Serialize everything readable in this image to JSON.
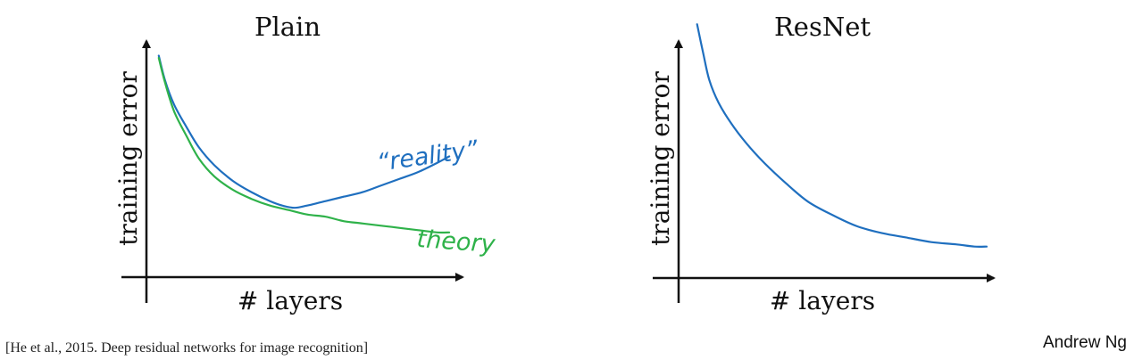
{
  "chart_data": [
    {
      "type": "line",
      "title": "Plain",
      "xlabel": "# layers",
      "ylabel": "training error",
      "xlim": [
        0,
        100
      ],
      "ylim": [
        0,
        100
      ],
      "grid": false,
      "series": [
        {
          "name": "“reality”",
          "color": "#1f6fbf",
          "x": [
            4,
            6,
            9,
            13,
            17,
            22,
            28,
            34,
            40,
            44,
            48,
            52,
            58,
            64,
            70,
            76,
            82,
            88,
            94,
            98
          ],
          "y": [
            99,
            88,
            77,
            67,
            58,
            50,
            43,
            38,
            34,
            32,
            31,
            32,
            34,
            36,
            38,
            41,
            44,
            47,
            51,
            54
          ]
        },
        {
          "name": "theory",
          "color": "#2fb24a",
          "x": [
            4,
            6,
            9,
            13,
            17,
            22,
            28,
            34,
            40,
            46,
            52,
            58,
            64,
            70,
            76,
            82,
            88,
            94,
            98
          ],
          "y": [
            98,
            87,
            74,
            63,
            53,
            45,
            39,
            35,
            32,
            30,
            28,
            27,
            25,
            24,
            23,
            22,
            21,
            20,
            20
          ]
        }
      ]
    },
    {
      "type": "line",
      "title": "ResNet",
      "xlabel": "# layers",
      "ylabel": "training error",
      "xlim": [
        0,
        100
      ],
      "ylim": [
        0,
        100
      ],
      "grid": false,
      "series": [
        {
          "color": "#1f6fbf",
          "x": [
            6,
            8,
            10,
            13,
            17,
            22,
            28,
            35,
            42,
            50,
            58,
            66,
            74,
            82,
            90,
            96,
            100
          ],
          "y": [
            113,
            100,
            88,
            78,
            69,
            60,
            51,
            42,
            34,
            28,
            23,
            20,
            18,
            16,
            15,
            14,
            14
          ]
        }
      ]
    }
  ],
  "annotations": {
    "reality": "“reality”",
    "theory": "theory"
  },
  "citation": "[He et al., 2015. Deep residual networks for image recognition]",
  "author": "Andrew Ng"
}
